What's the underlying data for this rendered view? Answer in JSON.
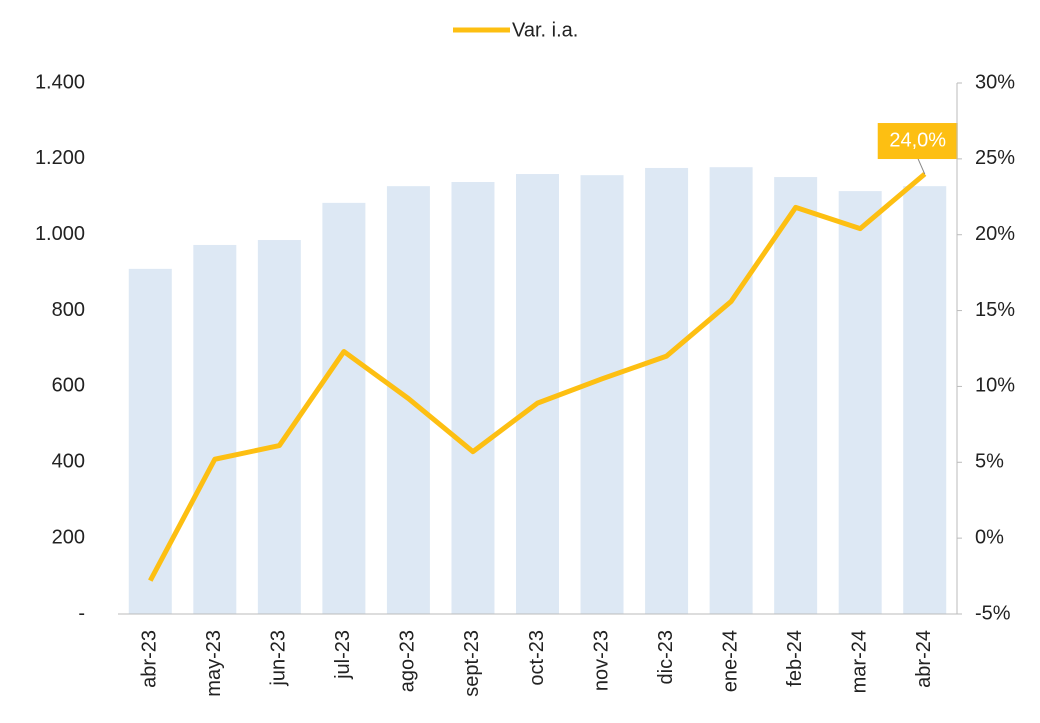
{
  "chart_data": {
    "type": "bar",
    "categories": [
      "abr-23",
      "may-23",
      "jun-23",
      "jul-23",
      "ago-23",
      "sept-23",
      "oct-23",
      "nov-23",
      "dic-23",
      "ene-24",
      "feb-24",
      "mar-24",
      "abr-24"
    ],
    "series": [
      {
        "type": "bar",
        "color": "#dde8f4",
        "values": [
          910,
          973,
          986,
          1084,
          1128,
          1139,
          1160,
          1157,
          1176,
          1178,
          1152,
          1115,
          1128
        ]
      },
      {
        "type": "line",
        "name": "Var. i.a.",
        "color": "#fdbf12",
        "axis": "y2",
        "values": [
          -2.8,
          5.2,
          6.1,
          12.3,
          9.2,
          5.7,
          8.9,
          10.5,
          12.0,
          15.6,
          21.8,
          20.4,
          24.0
        ],
        "value_labels": [
          null,
          null,
          null,
          null,
          null,
          null,
          null,
          null,
          null,
          null,
          null,
          null,
          "24,0%"
        ]
      }
    ],
    "ylim": [
      0,
      1400
    ],
    "yticks": [
      {
        "value": 0,
        "label": "-"
      },
      200,
      400,
      600,
      800,
      {
        "value": 1000,
        "label": "1.000"
      },
      {
        "value": 1200,
        "label": "1.200"
      },
      {
        "value": 1400,
        "label": "1.400"
      }
    ],
    "y2lim": [
      -5,
      30
    ],
    "y2ticks": [
      {
        "value": -5,
        "label": "-5%"
      },
      {
        "value": 0,
        "label": "0%"
      },
      {
        "value": 5,
        "label": "5%"
      },
      {
        "value": 10,
        "label": "10%"
      },
      {
        "value": 15,
        "label": "15%"
      },
      {
        "value": 20,
        "label": "20%"
      },
      {
        "value": 25,
        "label": "25%"
      },
      {
        "value": 30,
        "label": "30%"
      }
    ],
    "legend": "top"
  }
}
